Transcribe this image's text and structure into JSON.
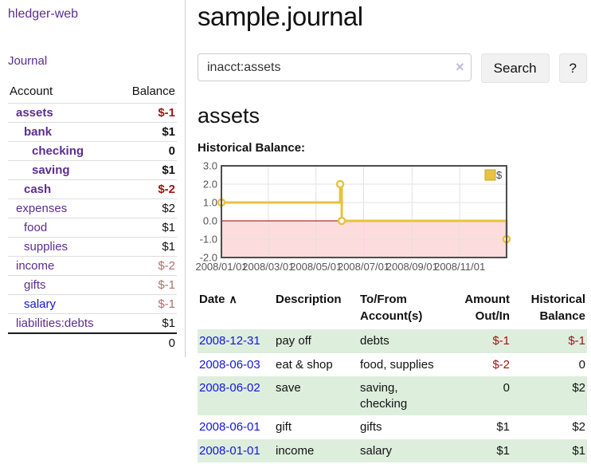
{
  "sidebar": {
    "app_title": "hledger-web",
    "journal_link": "Journal",
    "accounts_header": {
      "account": "Account",
      "balance": "Balance"
    },
    "accounts": [
      {
        "name": "assets",
        "balance": "$-1"
      },
      {
        "name": "bank",
        "balance": "$1"
      },
      {
        "name": "checking",
        "balance": "0"
      },
      {
        "name": "saving",
        "balance": "$1"
      },
      {
        "name": "cash",
        "balance": "$-2"
      },
      {
        "name": "expenses",
        "balance": "$2"
      },
      {
        "name": "food",
        "balance": "$1"
      },
      {
        "name": "supplies",
        "balance": "$1"
      },
      {
        "name": "income",
        "balance": "$-2"
      },
      {
        "name": "gifts",
        "balance": "$-1"
      },
      {
        "name": "salary",
        "balance": "$-1"
      },
      {
        "name": "liabilities:debts",
        "balance": "$1"
      }
    ],
    "total": "0"
  },
  "main": {
    "title": "sample.journal",
    "search": {
      "value": "inacct:assets",
      "clear_icon": "×",
      "button_label": "Search",
      "help_label": "?"
    },
    "account_heading": "assets"
  },
  "chart_data": {
    "type": "line",
    "style": "step",
    "title": "Historical Balance:",
    "legend": "$",
    "legend_position": "top-right",
    "series": [
      {
        "name": "$",
        "points": [
          [
            "2008-01-01",
            1
          ],
          [
            "2008-06-01",
            2
          ],
          [
            "2008-06-03",
            0
          ],
          [
            "2008-12-31",
            -1
          ]
        ]
      }
    ],
    "x_range": [
      "2008-01-01",
      "2008-12-31"
    ],
    "x_ticks": [
      "2008/01/01",
      "2008/03/01",
      "2008/05/01",
      "2008/07/01",
      "2008/09/01",
      "2008/11/01"
    ],
    "y_ticks": [
      3.0,
      2.0,
      1.0,
      0.0,
      -1.0,
      -2.0
    ],
    "ylim": [
      -2,
      3
    ],
    "grid": true,
    "colors": {
      "line": "#e8c240",
      "marker_fill": "#ffffff",
      "negative_fill": "#fcdcdc",
      "zero_line": "#990000",
      "grid": "#e2e2e2",
      "border": "#4d4d4d",
      "tick_text": "#555555",
      "legend_square": "#e8c33f"
    }
  },
  "register": {
    "headers": [
      "Date",
      "Description",
      "To/From Account(s)",
      "Amount Out/In",
      "Historical Balance"
    ],
    "sort_icon": "∧",
    "rows": [
      {
        "date": "2008-12-31",
        "description": "pay off",
        "accounts": "debts",
        "amount": "$-1",
        "balance": "$-1"
      },
      {
        "date": "2008-06-03",
        "description": "eat & shop",
        "accounts": "food, supplies",
        "amount": "$-2",
        "balance": "0"
      },
      {
        "date": "2008-06-02",
        "description": "save",
        "accounts": "saving, checking",
        "amount": "0",
        "balance": "$2"
      },
      {
        "date": "2008-06-01",
        "description": "gift",
        "accounts": "gifts",
        "amount": "$1",
        "balance": "$2"
      },
      {
        "date": "2008-01-01",
        "description": "income",
        "accounts": "salary",
        "amount": "$1",
        "balance": "$1"
      }
    ]
  }
}
